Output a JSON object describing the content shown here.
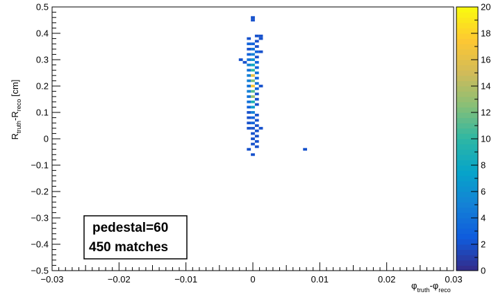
{
  "chart_data": {
    "type": "heatmap",
    "title": "",
    "xlabel": {
      "main": "φ",
      "sub1": "truth",
      "mid": "-φ",
      "sub2": "reco"
    },
    "ylabel": {
      "main": "R",
      "sub1": "truth",
      "mid": "-R",
      "sub2": "reco",
      "unit": " [cm]"
    },
    "xlim": [
      -0.03,
      0.03
    ],
    "ylim": [
      -0.5,
      0.5
    ],
    "x_ticks": [
      -0.03,
      -0.02,
      -0.01,
      0,
      0.01,
      0.02,
      0.03
    ],
    "x_tick_labels": [
      "−0.03",
      "−0.02",
      "−0.01",
      "0",
      "0.01",
      "0.02",
      "0.03"
    ],
    "y_ticks": [
      -0.5,
      -0.4,
      -0.3,
      -0.2,
      -0.1,
      0,
      0.1,
      0.2,
      0.3,
      0.4,
      0.5
    ],
    "y_tick_labels": [
      "−0.5",
      "−0.4",
      "−0.3",
      "−0.2",
      "−0.1",
      "0",
      "0.1",
      "0.2",
      "0.3",
      "0.4",
      "0.5"
    ],
    "z_range": [
      0,
      20
    ],
    "z_ticks": [
      0,
      2,
      4,
      6,
      8,
      10,
      12,
      14,
      16,
      18,
      20
    ],
    "z_tick_labels": [
      "0",
      "2",
      "4",
      "6",
      "8",
      "10",
      "12",
      "14",
      "16",
      "18",
      "20"
    ],
    "colorscale": [
      "#352a87",
      "#0f5cdd",
      "#1481d6",
      "#06a4ca",
      "#2eb7a4",
      "#87bf77",
      "#d1bb59",
      "#fec832",
      "#f9fb0e"
    ],
    "cell_width": 0.0006,
    "cell_height": 0.01,
    "cells": [
      {
        "x": 0.0,
        "y": 0.46,
        "z": 2
      },
      {
        "x": 0.0,
        "y": 0.45,
        "z": 2
      },
      {
        "x": -0.0006,
        "y": 0.38,
        "z": 2
      },
      {
        "x": 0.0006,
        "y": 0.39,
        "z": 2
      },
      {
        "x": 0.0012,
        "y": 0.39,
        "z": 2
      },
      {
        "x": 0.0012,
        "y": 0.38,
        "z": 2
      },
      {
        "x": 0.0006,
        "y": 0.37,
        "z": 2
      },
      {
        "x": -0.0006,
        "y": 0.36,
        "z": 3
      },
      {
        "x": 0.0,
        "y": 0.36,
        "z": 3
      },
      {
        "x": 0.0006,
        "y": 0.35,
        "z": 2
      },
      {
        "x": -0.0006,
        "y": 0.34,
        "z": 2
      },
      {
        "x": 0.0,
        "y": 0.34,
        "z": 4
      },
      {
        "x": 0.0006,
        "y": 0.33,
        "z": 3
      },
      {
        "x": 0.0012,
        "y": 0.33,
        "z": 2
      },
      {
        "x": -0.0006,
        "y": 0.32,
        "z": 3
      },
      {
        "x": 0.0,
        "y": 0.32,
        "z": 5
      },
      {
        "x": 0.0006,
        "y": 0.31,
        "z": 2
      },
      {
        "x": -0.0018,
        "y": 0.3,
        "z": 2
      },
      {
        "x": -0.0006,
        "y": 0.3,
        "z": 4
      },
      {
        "x": 0.0,
        "y": 0.3,
        "z": 6
      },
      {
        "x": -0.0012,
        "y": 0.29,
        "z": 2
      },
      {
        "x": 0.0006,
        "y": 0.29,
        "z": 3
      },
      {
        "x": -0.0006,
        "y": 0.28,
        "z": 5
      },
      {
        "x": 0.0,
        "y": 0.28,
        "z": 8
      },
      {
        "x": 0.0006,
        "y": 0.27,
        "z": 3
      },
      {
        "x": -0.0006,
        "y": 0.26,
        "z": 4
      },
      {
        "x": 0.0,
        "y": 0.26,
        "z": 10
      },
      {
        "x": 0.0006,
        "y": 0.25,
        "z": 4
      },
      {
        "x": -0.0006,
        "y": 0.24,
        "z": 5
      },
      {
        "x": 0.0,
        "y": 0.24,
        "z": 16
      },
      {
        "x": 0.0006,
        "y": 0.23,
        "z": 3
      },
      {
        "x": -0.0006,
        "y": 0.22,
        "z": 5
      },
      {
        "x": 0.0,
        "y": 0.22,
        "z": 12
      },
      {
        "x": 0.0006,
        "y": 0.21,
        "z": 4
      },
      {
        "x": -0.0006,
        "y": 0.2,
        "z": 4
      },
      {
        "x": 0.0,
        "y": 0.2,
        "z": 17
      },
      {
        "x": 0.0012,
        "y": 0.2,
        "z": 2
      },
      {
        "x": 0.0006,
        "y": 0.19,
        "z": 3
      },
      {
        "x": -0.0006,
        "y": 0.18,
        "z": 5
      },
      {
        "x": 0.0,
        "y": 0.18,
        "z": 11
      },
      {
        "x": 0.0006,
        "y": 0.17,
        "z": 2
      },
      {
        "x": -0.0006,
        "y": 0.16,
        "z": 4
      },
      {
        "x": 0.0,
        "y": 0.16,
        "z": 13
      },
      {
        "x": 0.0006,
        "y": 0.15,
        "z": 2
      },
      {
        "x": -0.0006,
        "y": 0.14,
        "z": 4
      },
      {
        "x": 0.0,
        "y": 0.14,
        "z": 9
      },
      {
        "x": -0.0006,
        "y": 0.12,
        "z": 3
      },
      {
        "x": 0.0,
        "y": 0.12,
        "z": 7
      },
      {
        "x": 0.0006,
        "y": 0.13,
        "z": 2
      },
      {
        "x": -0.0006,
        "y": 0.1,
        "z": 2
      },
      {
        "x": 0.0,
        "y": 0.1,
        "z": 5
      },
      {
        "x": 0.0006,
        "y": 0.09,
        "z": 2
      },
      {
        "x": -0.0006,
        "y": 0.08,
        "z": 2
      },
      {
        "x": 0.0,
        "y": 0.08,
        "z": 3
      },
      {
        "x": -0.0006,
        "y": 0.06,
        "z": 2
      },
      {
        "x": 0.0,
        "y": 0.06,
        "z": 3
      },
      {
        "x": 0.0006,
        "y": 0.07,
        "z": 2
      },
      {
        "x": -0.0006,
        "y": 0.04,
        "z": 2
      },
      {
        "x": 0.0,
        "y": 0.04,
        "z": 2
      },
      {
        "x": 0.0006,
        "y": 0.05,
        "z": 2
      },
      {
        "x": 0.0012,
        "y": 0.04,
        "z": 2
      },
      {
        "x": 0.0006,
        "y": 0.03,
        "z": 2
      },
      {
        "x": 0.0,
        "y": 0.02,
        "z": 2
      },
      {
        "x": 0.0006,
        "y": 0.01,
        "z": 2
      },
      {
        "x": 0.0,
        "y": 0.0,
        "z": 2
      },
      {
        "x": 0.0006,
        "y": -0.01,
        "z": 2
      },
      {
        "x": 0.0,
        "y": -0.02,
        "z": 2
      },
      {
        "x": 0.0006,
        "y": -0.03,
        "z": 2
      },
      {
        "x": -0.0006,
        "y": -0.04,
        "z": 2
      },
      {
        "x": 0.0,
        "y": -0.06,
        "z": 2
      },
      {
        "x": 0.0078,
        "y": -0.04,
        "z": 2
      }
    ]
  },
  "textbox": {
    "line1": "pedestal=60",
    "line2": "450 matches"
  }
}
